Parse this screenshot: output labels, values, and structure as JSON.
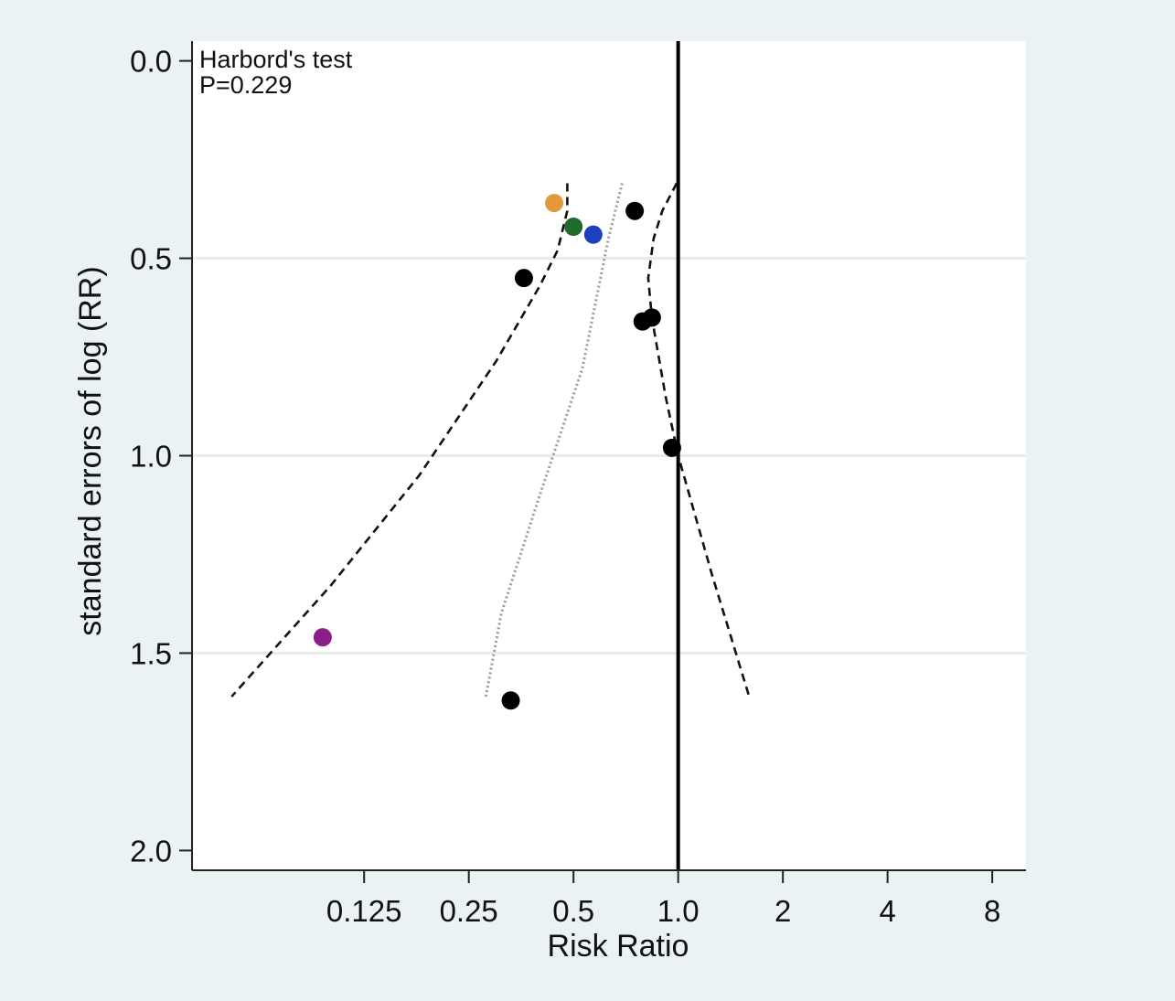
{
  "chart_data": {
    "type": "scatter",
    "xlabel": "Risk Ratio",
    "ylabel": "standard errors of log (RR)",
    "x_scale": "log",
    "y_inverted": true,
    "xlim": [
      0.04,
      10
    ],
    "ylim": [
      2.05,
      -0.05
    ],
    "x_ticks": [
      0.125,
      0.25,
      0.5,
      1.0,
      2,
      4,
      8
    ],
    "x_tick_labels": [
      "0.125",
      "0.25",
      "0.5",
      "1.0",
      "2",
      "4",
      "8"
    ],
    "y_ticks": [
      0.0,
      0.5,
      1.0,
      1.5,
      2.0
    ],
    "y_tick_labels": [
      "0.0",
      "0.5",
      "1.0",
      "1.5",
      "2.0"
    ],
    "grid": "horizontal",
    "annotation": {
      "lines": [
        "Harbord's test",
        "P=0.229"
      ],
      "position": "top-left"
    },
    "reference_line": {
      "x": 1.0,
      "style": "solid"
    },
    "points": [
      {
        "x": 0.44,
        "y": 0.36,
        "color": "#e09a3b"
      },
      {
        "x": 0.5,
        "y": 0.42,
        "color": "#1f6b2b"
      },
      {
        "x": 0.57,
        "y": 0.44,
        "color": "#1f3fbf"
      },
      {
        "x": 0.75,
        "y": 0.38,
        "color": "#000000"
      },
      {
        "x": 0.36,
        "y": 0.55,
        "color": "#000000"
      },
      {
        "x": 0.84,
        "y": 0.65,
        "color": "#000000"
      },
      {
        "x": 0.79,
        "y": 0.66,
        "color": "#000000"
      },
      {
        "x": 0.96,
        "y": 0.98,
        "color": "#000000"
      },
      {
        "x": 0.095,
        "y": 1.46,
        "color": "#8a1f8a"
      },
      {
        "x": 0.33,
        "y": 1.62,
        "color": "#000000"
      }
    ],
    "lines": [
      {
        "style": "dashed",
        "points": [
          [
            0.48,
            0.31
          ],
          [
            0.48,
            0.38
          ],
          [
            0.45,
            0.48
          ],
          [
            0.4,
            0.57
          ],
          [
            0.3,
            0.76
          ],
          [
            0.18,
            1.05
          ],
          [
            0.1,
            1.33
          ],
          [
            0.052,
            1.61
          ]
        ]
      },
      {
        "style": "dotted",
        "points": [
          [
            0.69,
            0.31
          ],
          [
            0.63,
            0.45
          ],
          [
            0.53,
            0.78
          ],
          [
            0.4,
            1.1
          ],
          [
            0.31,
            1.4
          ],
          [
            0.28,
            1.61
          ]
        ]
      },
      {
        "style": "dashed",
        "points": [
          [
            0.99,
            0.31
          ],
          [
            0.9,
            0.38
          ],
          [
            0.85,
            0.45
          ],
          [
            0.82,
            0.55
          ],
          [
            0.84,
            0.65
          ],
          [
            0.92,
            0.85
          ],
          [
            1.0,
            1.0
          ],
          [
            1.25,
            1.3
          ],
          [
            1.6,
            1.61
          ]
        ]
      }
    ],
    "colors": {
      "background": "#eaf2f3",
      "plot_background": "#ffffff",
      "grid": "#e6eced",
      "axis": "#222222"
    }
  }
}
